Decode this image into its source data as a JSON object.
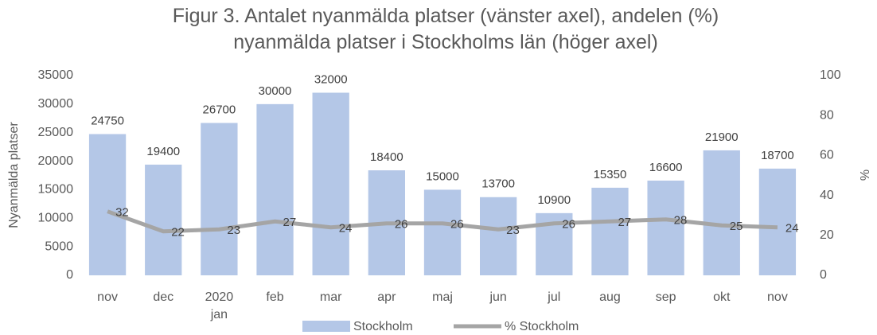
{
  "chart_data": {
    "type": "bar",
    "title": "Figur 3. Antalet nyanmälda platser (vänster axel), andelen (%) nyanmälda platser i Stockholms län (höger axel)",
    "categories": [
      "nov",
      "dec",
      "2020 jan",
      "feb",
      "mar",
      "apr",
      "maj",
      "jun",
      "jul",
      "aug",
      "sep",
      "okt",
      "nov"
    ],
    "series": [
      {
        "name": "Stockholm",
        "type": "bar",
        "color": "#b4c7e7",
        "values": [
          24750,
          19400,
          26700,
          30000,
          32000,
          18400,
          15000,
          13700,
          10900,
          15350,
          16600,
          21900,
          18700
        ]
      },
      {
        "name": "% Stockholm",
        "type": "line",
        "axis": "y2",
        "color": "#a5a5a5",
        "values": [
          32,
          22,
          23,
          27,
          24,
          26,
          26,
          23,
          26,
          27,
          28,
          25,
          24
        ]
      }
    ],
    "ylabel": "Nyanmälda platser",
    "y2label": "%",
    "ylim": [
      0,
      35000
    ],
    "yticks": [
      0,
      5000,
      10000,
      15000,
      20000,
      25000,
      30000,
      35000
    ],
    "y2lim": [
      0,
      100
    ],
    "y2ticks": [
      0,
      20,
      40,
      60,
      80,
      100
    ],
    "legend": "bottom"
  }
}
